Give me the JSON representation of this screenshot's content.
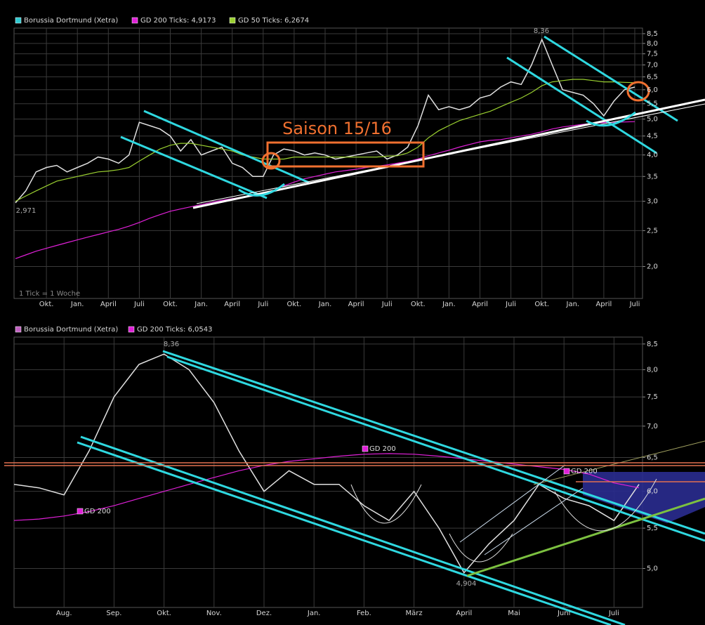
{
  "chart_data": [
    {
      "type": "line",
      "log_scale": true,
      "grid": true,
      "background": "#000000",
      "categories": [
        null,
        null,
        null,
        "Okt.",
        null,
        null,
        "Jan.",
        null,
        null,
        "April",
        null,
        null,
        "Juli",
        null,
        null,
        "Okt.",
        null,
        null,
        "Jan.",
        null,
        null,
        "April",
        null,
        null,
        "Juli",
        null,
        null,
        "Okt.",
        null,
        null,
        "Jan.",
        null,
        null,
        "April",
        null,
        null,
        "Juli",
        null,
        null,
        "Okt.",
        null,
        null,
        "Jan.",
        null,
        null,
        "April",
        null,
        null,
        "Juli",
        null,
        null,
        "Okt.",
        null,
        null,
        "Jan.",
        null,
        null,
        "April",
        null,
        null,
        "Juli"
      ],
      "series": [
        {
          "name": "Borussia Dortmund (Xetra)",
          "color": "#2fc9d0",
          "line_color": "#e0e0e0",
          "values": [
            2.97,
            3.2,
            3.6,
            3.7,
            3.75,
            3.6,
            3.7,
            3.8,
            3.95,
            3.9,
            3.8,
            4.0,
            4.9,
            4.8,
            4.7,
            4.5,
            4.1,
            4.4,
            4.0,
            4.1,
            4.2,
            3.8,
            3.7,
            3.5,
            3.5,
            4.0,
            4.15,
            4.1,
            4.0,
            4.05,
            4.0,
            3.9,
            3.95,
            4.0,
            4.05,
            4.1,
            3.9,
            4.0,
            4.2,
            4.8,
            5.8,
            5.3,
            5.4,
            5.3,
            5.4,
            5.7,
            5.8,
            6.1,
            6.3,
            6.2,
            7.0,
            8.2,
            7.0,
            6.0,
            5.9,
            5.8,
            5.5,
            5.1,
            5.6,
            6.0,
            6.1
          ]
        },
        {
          "name": "GD 200 Ticks: 4,9173",
          "color": "#e020d8",
          "values": [
            2.1,
            2.15,
            2.2,
            2.24,
            2.28,
            2.32,
            2.36,
            2.4,
            2.44,
            2.48,
            2.52,
            2.57,
            2.63,
            2.7,
            2.76,
            2.82,
            2.86,
            2.9,
            2.94,
            2.98,
            3.02,
            3.05,
            3.08,
            3.1,
            3.13,
            3.2,
            3.3,
            3.38,
            3.45,
            3.5,
            3.55,
            3.6,
            3.63,
            3.66,
            3.7,
            3.73,
            3.76,
            3.8,
            3.84,
            3.9,
            3.98,
            4.05,
            4.12,
            4.2,
            4.27,
            4.34,
            4.38,
            4.4,
            4.45,
            4.5,
            4.55,
            4.62,
            4.7,
            4.76,
            4.8,
            4.84,
            4.87,
            4.89,
            4.9,
            4.91,
            4.92
          ]
        },
        {
          "name": "GD 50 Ticks: 6,2674",
          "color": "#9ad030",
          "values": [
            3.0,
            3.1,
            3.2,
            3.3,
            3.4,
            3.45,
            3.5,
            3.55,
            3.6,
            3.62,
            3.65,
            3.7,
            3.85,
            4.0,
            4.15,
            4.25,
            4.3,
            4.3,
            4.25,
            4.2,
            4.15,
            4.1,
            4.0,
            3.95,
            3.9,
            3.9,
            3.9,
            3.95,
            3.95,
            3.95,
            3.95,
            3.95,
            3.95,
            3.95,
            3.95,
            3.95,
            3.97,
            3.98,
            4.05,
            4.2,
            4.45,
            4.65,
            4.8,
            4.95,
            5.05,
            5.15,
            5.25,
            5.4,
            5.55,
            5.7,
            5.9,
            6.15,
            6.3,
            6.35,
            6.4,
            6.4,
            6.35,
            6.3,
            6.3,
            6.28,
            6.27
          ]
        }
      ],
      "ylim": [
        1.64,
        8.8
      ],
      "yticks": [
        {
          "value": 8.5,
          "label": "8,5"
        },
        {
          "value": 8,
          "label": "8,0"
        },
        {
          "value": 7.5,
          "label": "7,5"
        },
        {
          "value": 7,
          "label": "7,0"
        },
        {
          "value": 6.5,
          "label": "6,5"
        },
        {
          "value": 6,
          "label": "6,0"
        },
        {
          "value": 5.5,
          "label": "5,5"
        },
        {
          "value": 5,
          "label": "5,0"
        },
        {
          "value": 4.5,
          "label": "4,5"
        },
        {
          "value": 4,
          "label": "4,0"
        },
        {
          "value": 3.5,
          "label": "3,5"
        },
        {
          "value": 3,
          "label": "3,0"
        },
        {
          "value": 2.5,
          "label": "2,5"
        },
        {
          "value": 2,
          "label": "2,0"
        }
      ],
      "annotations": [
        "8,36",
        "2,971",
        "1 Tick = 1 Woche",
        "Saison 15/16"
      ]
    },
    {
      "type": "line",
      "log_scale": true,
      "grid": true,
      "background": "#000000",
      "categories": [
        null,
        null,
        "Aug.",
        null,
        "Sep.",
        null,
        "Okt.",
        null,
        "Nov.",
        null,
        "Dez.",
        null,
        "Jan.",
        null,
        "Feb.",
        null,
        "März",
        null,
        "April",
        null,
        "Mai",
        null,
        "Juni",
        null,
        "Juli",
        null
      ],
      "series": [
        {
          "name": "Borussia Dortmund (Xetra)",
          "color": "#c060c0",
          "line_color": "#e0e0e0",
          "values": [
            6.1,
            6.05,
            5.95,
            6.6,
            7.5,
            8.1,
            8.3,
            8.0,
            7.4,
            6.6,
            6.0,
            6.3,
            6.1,
            6.1,
            5.8,
            5.6,
            6.0,
            5.5,
            4.95,
            5.3,
            5.6,
            6.1,
            5.9,
            5.8,
            5.6,
            6.1
          ]
        },
        {
          "name": "GD 200 Ticks: 6,0543",
          "color": "#e020d8",
          "values": [
            5.6,
            5.62,
            5.66,
            5.72,
            5.8,
            5.9,
            6.0,
            6.1,
            6.2,
            6.3,
            6.38,
            6.44,
            6.48,
            6.52,
            6.55,
            6.56,
            6.55,
            6.52,
            6.48,
            6.44,
            6.4,
            6.36,
            6.32,
            6.25,
            6.12,
            6.05
          ]
        }
      ],
      "ylim": [
        4.56,
        8.64
      ],
      "yticks": [
        {
          "value": 8.5,
          "label": "8,5"
        },
        {
          "value": 8,
          "label": "8,0"
        },
        {
          "value": 7.5,
          "label": "7,5"
        },
        {
          "value": 7,
          "label": "7,0"
        },
        {
          "value": 6.5,
          "label": "6,5"
        },
        {
          "value": 6,
          "label": "6,0"
        },
        {
          "value": 5.5,
          "label": "5,5"
        },
        {
          "value": 5,
          "label": "5,0"
        }
      ],
      "annotations": [
        "8,36",
        "4,904",
        "GD 200",
        "GD 200",
        "GD 200"
      ]
    }
  ]
}
